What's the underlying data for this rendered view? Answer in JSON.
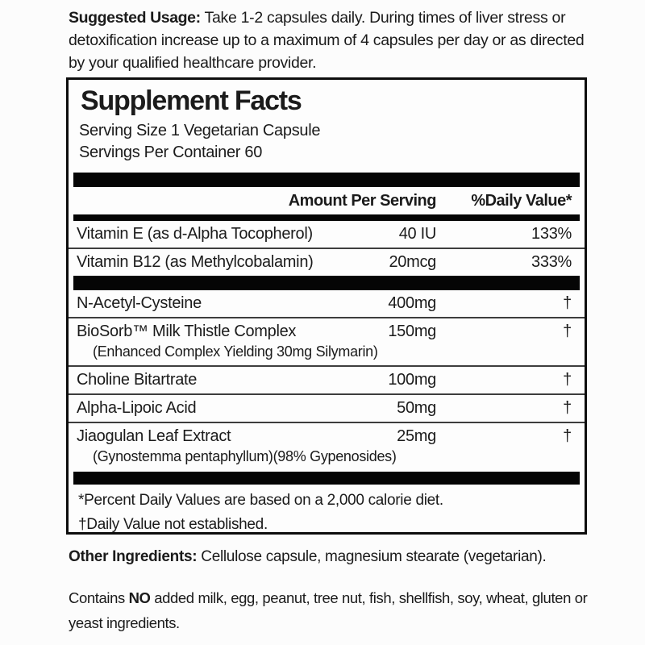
{
  "usage": {
    "label": "Suggested Usage:",
    "text": " Take 1-2 capsules daily. During times of liver stress or detoxification increase up to a maximum of 4 capsules per day or as directed by your qualified healthcare provider."
  },
  "facts": {
    "title": "Supplement Facts",
    "serving_size": "Serving Size 1 Vegetarian Capsule",
    "servings_per_container": "Servings Per Container 60",
    "columns": {
      "amount": "Amount Per Serving",
      "daily_value": "%Daily Value*"
    },
    "rows": [
      {
        "name": "Vitamin E (as d-Alpha Tocopherol)",
        "amount": "40 IU",
        "dv": "133%",
        "separator": true
      },
      {
        "name": "Vitamin B12 (as Methylcobalamin)",
        "amount": "20mcg",
        "dv": "333%",
        "separator": false,
        "bar_after": true
      },
      {
        "name": "N-Acetyl-Cysteine",
        "amount": "400mg",
        "dv": "†",
        "separator": true
      },
      {
        "name": "BioSorb™ Milk Thistle Complex",
        "sub": "(Enhanced Complex Yielding 30mg Silymarin)",
        "amount": "150mg",
        "dv": "†",
        "separator": true
      },
      {
        "name": "Choline Bitartrate",
        "amount": "100mg",
        "dv": "†",
        "separator": true
      },
      {
        "name": "Alpha-Lipoic Acid",
        "amount": "50mg",
        "dv": "†",
        "separator": true
      },
      {
        "name": "Jiaogulan Leaf Extract",
        "sub": "(Gynostemma pentaphyllum)(98% Gypenosides)",
        "amount": "25mg",
        "dv": "†",
        "separator": false
      }
    ],
    "footnotes": [
      "*Percent Daily Values are based on a 2,000 calorie diet.",
      "†Daily Value not established."
    ]
  },
  "other_ingredients": {
    "label": "Other Ingredients:",
    "text": "  Cellulose capsule, magnesium stearate (vegetarian)."
  },
  "allergen": {
    "prefix": "Contains ",
    "emphasis": "NO",
    "suffix": " added milk, egg, peanut, tree nut, fish, shellfish, soy, wheat, gluten or yeast ingredients."
  },
  "colors": {
    "background": "#fcfcfc",
    "text": "#1b1b1b",
    "bar": "#050505",
    "separator": "#3d3d3d",
    "box_border": "#0d0d0d"
  }
}
